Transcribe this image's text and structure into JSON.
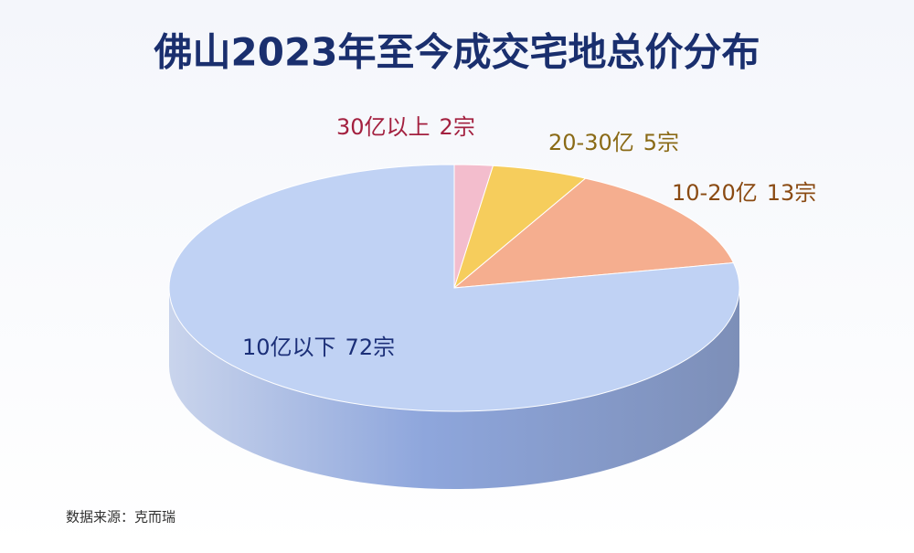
{
  "chart_data": {
    "type": "pie",
    "title": "佛山2023年至今成交宅地总价分布",
    "categories": [
      "30亿以上",
      "20-30亿",
      "10-20亿",
      "10亿以下"
    ],
    "values": [
      2,
      5,
      13,
      72
    ],
    "value_labels": [
      "2宗",
      "5宗",
      "13宗",
      "72宗"
    ],
    "colors": [
      "#f2b6c8",
      "#f5c84a",
      "#f4a583",
      "#b9cdf3"
    ],
    "label_colors": [
      "#a3203f",
      "#8a6a16",
      "#8a4a12",
      "#1b2f78"
    ],
    "source": "数据来源：克而瑞"
  }
}
